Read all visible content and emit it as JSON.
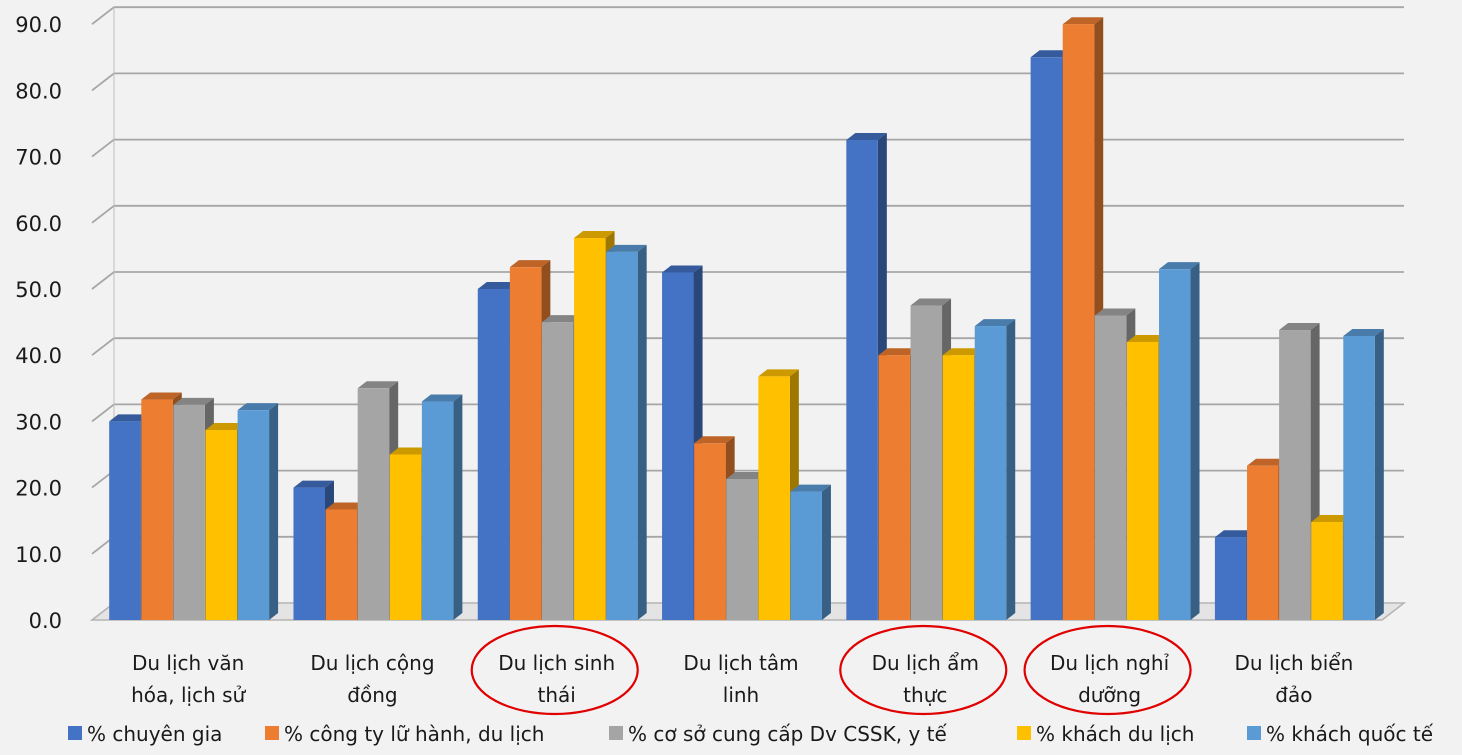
{
  "chart_data": {
    "type": "bar",
    "title": "",
    "xlabel": "",
    "ylabel": "",
    "ylim": [
      0,
      90
    ],
    "yticks": [
      "0.0",
      "10.0",
      "20.0",
      "30.0",
      "40.0",
      "50.0",
      "60.0",
      "70.0",
      "80.0",
      "90.0"
    ],
    "grid": true,
    "legend_position": "bottom",
    "categories": [
      [
        "Du lịch văn",
        "hóa, lịch sử"
      ],
      [
        "Du lịch cộng",
        "đồng"
      ],
      [
        "Du lịch sinh",
        "thái"
      ],
      [
        "Du lịch tâm",
        "linh"
      ],
      [
        "Du lịch ẩm",
        "thực"
      ],
      [
        "Du lịch nghỉ",
        "dưỡng"
      ],
      [
        "Du lịch biển",
        "đảo"
      ]
    ],
    "highlighted_categories": [
      2,
      4,
      5
    ],
    "highlight_color": "#e00000",
    "series": [
      {
        "name": "% chuyên gia",
        "color": "#4472c4",
        "values": [
          30.0,
          20.0,
          50.0,
          52.5,
          72.5,
          85.0,
          12.5
        ]
      },
      {
        "name": "% công ty lữ hành, du lịch",
        "color": "#ed7d31",
        "values": [
          33.3,
          16.7,
          53.3,
          26.7,
          40.0,
          90.0,
          23.3
        ]
      },
      {
        "name": "% cơ sở cung cấp Dv CSSK, y tế",
        "color": "#a5a5a5",
        "values": [
          32.5,
          35.0,
          45.0,
          21.3,
          47.5,
          46.0,
          43.8
        ]
      },
      {
        "name": "% khách du lịch",
        "color": "#ffc000",
        "values": [
          28.7,
          25.0,
          57.7,
          36.8,
          40.0,
          42.0,
          14.8
        ]
      },
      {
        "name": "% khách quốc tế",
        "color": "#5b9bd5",
        "values": [
          31.7,
          33.0,
          55.6,
          19.4,
          44.4,
          53.0,
          42.9
        ]
      }
    ]
  }
}
